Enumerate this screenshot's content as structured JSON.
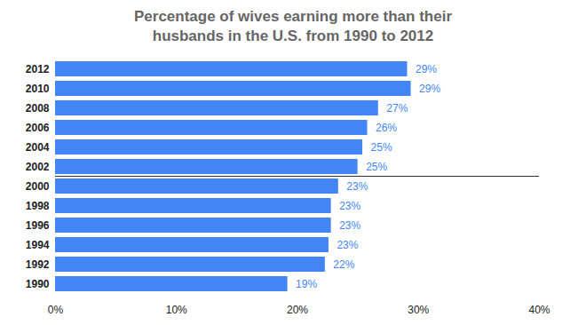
{
  "chart_data": {
    "type": "bar",
    "orientation": "horizontal",
    "title": "Percentage of wives earning more than their husbands in the U.S. from 1990 to 2012",
    "categories": [
      "2012",
      "2010",
      "2008",
      "2006",
      "2004",
      "2002",
      "2000",
      "1998",
      "1996",
      "1994",
      "1992",
      "1990"
    ],
    "values": [
      29.1,
      29.4,
      26.7,
      25.8,
      25.4,
      25.0,
      23.4,
      22.8,
      22.8,
      22.6,
      22.3,
      19.2
    ],
    "value_labels": [
      "29%",
      "29%",
      "27%",
      "26%",
      "25%",
      "25%",
      "23%",
      "23%",
      "23%",
      "23%",
      "22%",
      "19%"
    ],
    "data_labels": true,
    "color": "#4285f4",
    "xlim": [
      0,
      40
    ],
    "xticks": [
      {
        "value": 0,
        "label": "0%"
      },
      {
        "value": 10,
        "label": "10%"
      },
      {
        "value": 20,
        "label": "20%"
      },
      {
        "value": 30,
        "label": "30%"
      },
      {
        "value": 40,
        "label": "40%"
      }
    ],
    "grid": false
  }
}
